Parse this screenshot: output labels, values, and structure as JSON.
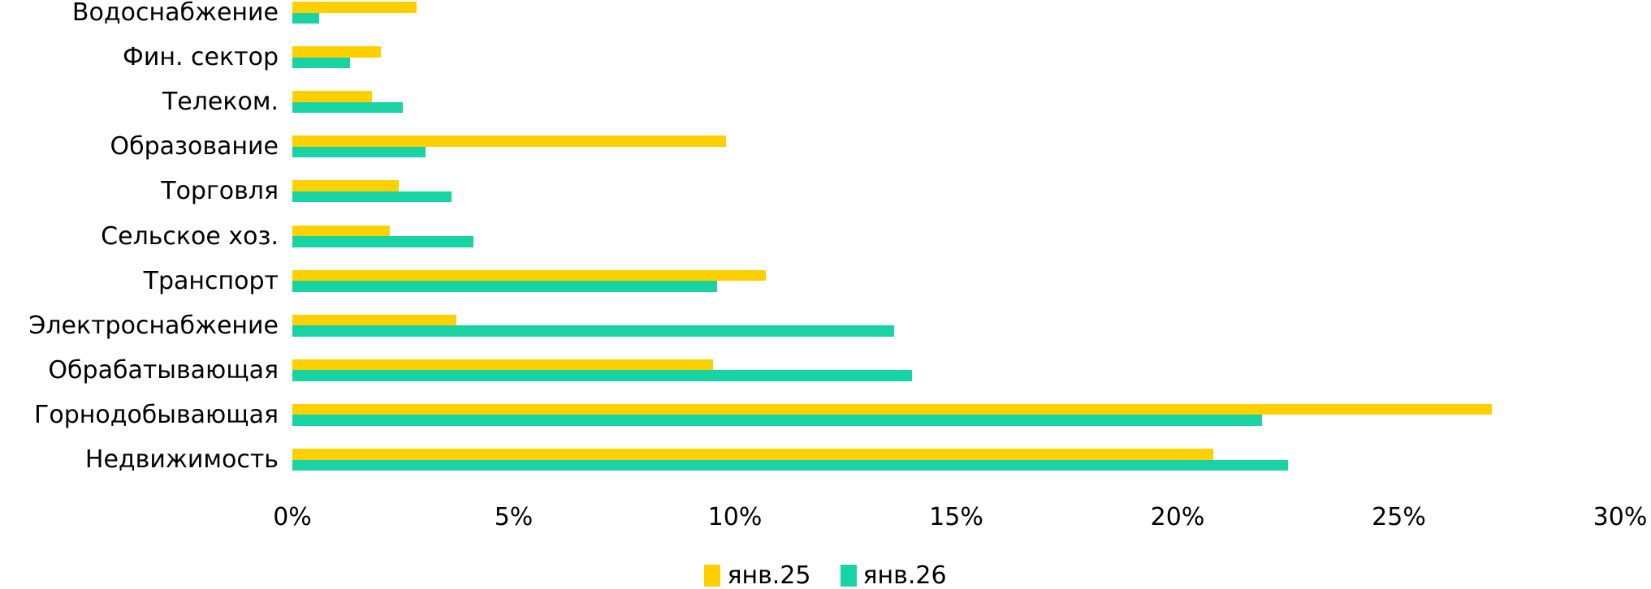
{
  "chart_data": {
    "type": "bar",
    "orientation": "horizontal",
    "title": "",
    "xlabel": "",
    "ylabel": "",
    "grid": false,
    "legend_position": "bottom",
    "xlim": [
      0,
      30
    ],
    "x_ticks": [
      "0%",
      "5%",
      "10%",
      "15%",
      "20%",
      "25%",
      "30%"
    ],
    "x_tick_values": [
      0,
      5,
      10,
      15,
      20,
      25,
      30
    ],
    "categories": [
      "Водоснабжение",
      "Фин. сектор",
      "Телеком.",
      "Образование",
      "Торговля",
      "Сельское хоз.",
      "Транспорт",
      "Электроснабжение",
      "Обрабатывающая",
      "Горнодобывающая",
      "Недвижимость"
    ],
    "series": [
      {
        "name": "янв.25",
        "color": "#ffd000",
        "values": [
          2.8,
          2.0,
          1.8,
          9.8,
          2.4,
          2.2,
          10.7,
          3.7,
          9.5,
          27.1,
          20.8
        ]
      },
      {
        "name": "янв.26",
        "color": "#18d3a4",
        "values": [
          0.6,
          1.3,
          2.5,
          3.0,
          3.6,
          4.1,
          9.6,
          13.6,
          14.0,
          21.9,
          22.5
        ]
      }
    ]
  }
}
